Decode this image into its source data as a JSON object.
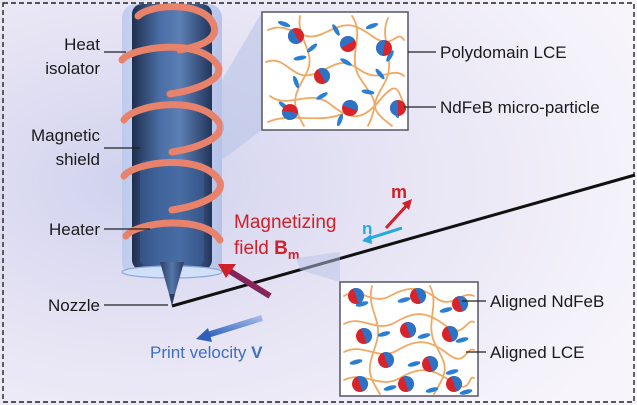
{
  "labels": {
    "heat_isolator_line1": "Heat",
    "heat_isolator_line2": "isolator",
    "magnetic_shield_line1": "Magnetic",
    "magnetic_shield_line2": "shield",
    "heater": "Heater",
    "nozzle": "Nozzle",
    "magnetizing_line1": "Magnetizing",
    "magnetizing_field_word": "field ",
    "magnetizing_field_symbol": "B",
    "magnetizing_field_subscript": "m",
    "vector_m": "m",
    "vector_n": "n",
    "print_velocity_text": "Print velocity ",
    "print_velocity_symbol": "V",
    "inset_top_label1": "Polydomain LCE",
    "inset_top_label2": "NdFeB micro-particle",
    "inset_bottom_label1": "Aligned NdFeB",
    "inset_bottom_label2": "Aligned LCE"
  },
  "colors": {
    "magnetizing": "#d0202a",
    "velocity": "#3d6fc4",
    "director": "#29a8e0",
    "lce_fiber": "#f0a862",
    "particle_red": "#d8232a",
    "particle_blue": "#2b73c6",
    "mesogen": "#2a7fd4",
    "coil": "#e8826a",
    "shield": "#37598e",
    "background": "#e9e5f5"
  }
}
